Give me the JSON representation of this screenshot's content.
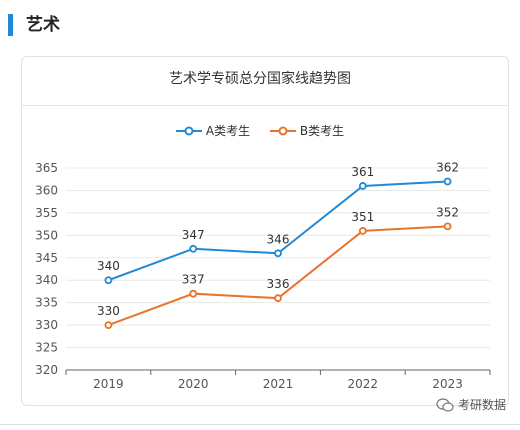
{
  "section": {
    "title": "艺术"
  },
  "watermark": {
    "text": "考研数据"
  },
  "colors": {
    "accent": "#1f8ad6",
    "series_a": "#1f8ad6",
    "series_b": "#e8732a"
  },
  "chart_data": {
    "type": "line",
    "title": "艺术学专硕总分国家线趋势图",
    "categories": [
      "2019",
      "2020",
      "2021",
      "2022",
      "2023"
    ],
    "series": [
      {
        "name": "A类考生",
        "values": [
          340,
          347,
          346,
          361,
          362
        ]
      },
      {
        "name": "B类考生",
        "values": [
          330,
          337,
          336,
          351,
          352
        ]
      }
    ],
    "ylim": [
      320,
      365
    ],
    "yticks": [
      "320",
      "325",
      "330",
      "335",
      "340",
      "345",
      "350",
      "355",
      "360",
      "365"
    ],
    "grid": true,
    "legend_position": "top"
  }
}
